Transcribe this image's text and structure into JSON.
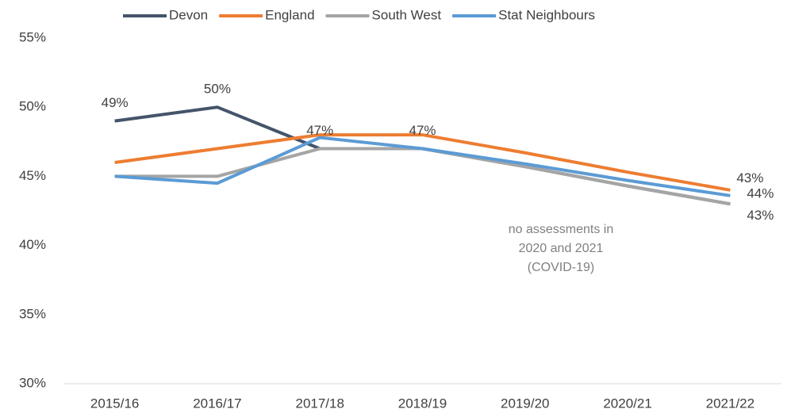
{
  "chart_data": {
    "type": "line",
    "categories": [
      "2015/16",
      "2016/17",
      "2017/18",
      "2018/19",
      "2019/20",
      "2020/21",
      "2021/22"
    ],
    "series": [
      {
        "name": "Devon",
        "color": "#44546a",
        "values": [
          49,
          50,
          47,
          47,
          45.7,
          44.3,
          43
        ],
        "value_labels": [
          "49%",
          "50%",
          "47%",
          "47%",
          null,
          null,
          "43%"
        ]
      },
      {
        "name": "England",
        "color": "#ed7d31",
        "values": [
          46,
          47,
          48,
          48,
          46.7,
          45.3,
          44
        ],
        "value_labels": [
          null,
          null,
          null,
          null,
          null,
          null,
          "44%"
        ]
      },
      {
        "name": "South West",
        "color": "#a5a5a5",
        "values": [
          45,
          45,
          47,
          47,
          45.7,
          44.3,
          43
        ],
        "value_labels": [
          null,
          null,
          null,
          null,
          null,
          null,
          "43%"
        ]
      },
      {
        "name": "Stat Neighbours",
        "color": "#5b9bd5",
        "values": [
          45,
          44.5,
          47.8,
          47,
          45.9,
          44.7,
          43.6
        ]
      }
    ],
    "ylim": [
      30,
      55
    ],
    "yticks": [
      {
        "value": 30,
        "label": "30%"
      },
      {
        "value": 35,
        "label": "35%"
      },
      {
        "value": 40,
        "label": "40%"
      },
      {
        "value": 45,
        "label": "45%"
      },
      {
        "value": 50,
        "label": "50%"
      },
      {
        "value": 55,
        "label": "55%"
      }
    ],
    "annotation": [
      "no assessments in",
      "2020 and 2021",
      "(COVID-19)"
    ],
    "legend": "top"
  }
}
